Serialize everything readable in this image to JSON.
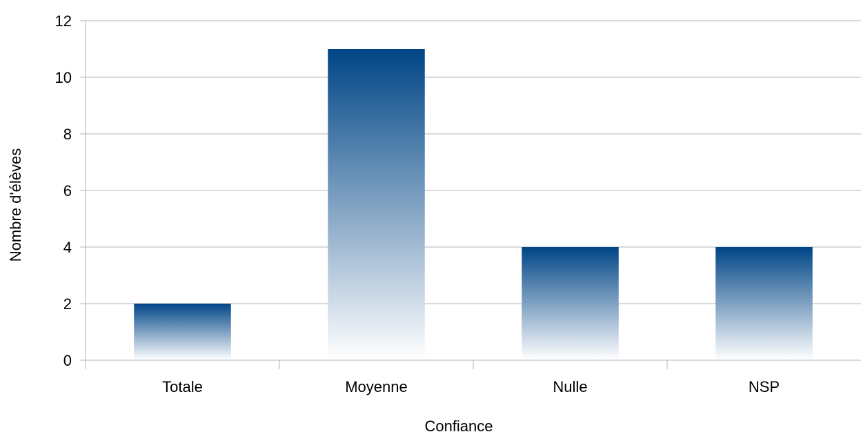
{
  "chart_data": {
    "type": "bar",
    "categories": [
      "Totale",
      "Moyenne",
      "Nulle",
      "NSP"
    ],
    "values": [
      2,
      11,
      4,
      4
    ],
    "xlabel": "Confiance",
    "ylabel": "Nombre d'élèves",
    "ylim": [
      0,
      12
    ],
    "yticks": [
      0,
      2,
      4,
      6,
      8,
      10,
      12
    ],
    "grid": "horizontal",
    "legend": "none",
    "colors": {
      "bar_top": "#004586",
      "bar_bottom": "#ffffff"
    }
  }
}
